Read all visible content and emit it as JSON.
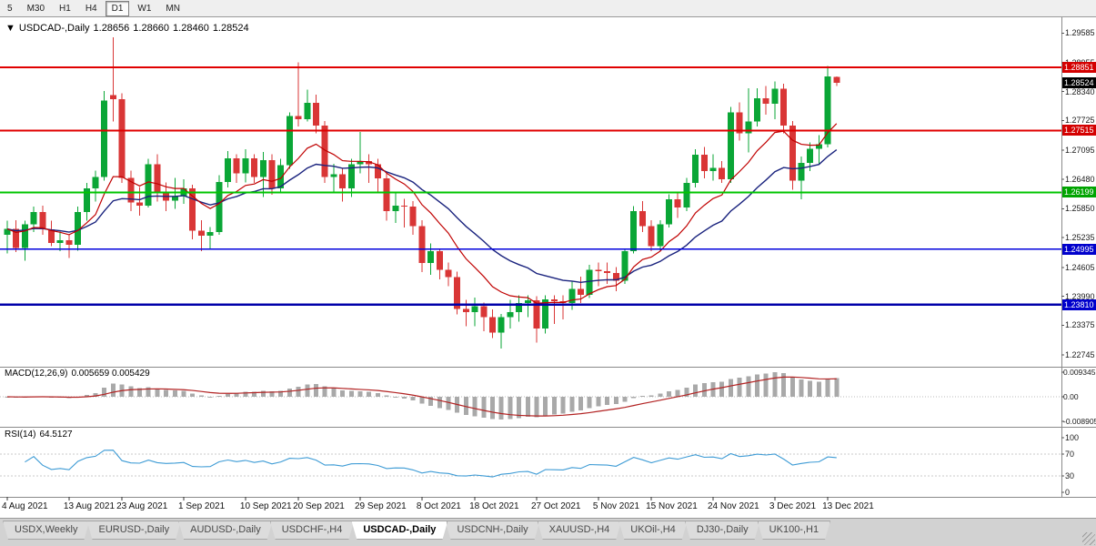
{
  "toolbar": {
    "timeframes": [
      {
        "label": "5",
        "active": false
      },
      {
        "label": "M30",
        "active": false
      },
      {
        "label": "H1",
        "active": false
      },
      {
        "label": "H4",
        "active": false
      },
      {
        "label": "D1",
        "active": true
      },
      {
        "label": "W1",
        "active": false
      },
      {
        "label": "MN",
        "active": false
      }
    ]
  },
  "chart": {
    "symbol_title": "USDCAD-,Daily",
    "ohlc_text": {
      "open": "1.28656",
      "high": "1.28660",
      "low": "1.28460",
      "close": "1.28524"
    },
    "price_axis_labels": [
      "1.29585",
      "1.28955",
      "1.28340",
      "1.27725",
      "1.27095",
      "1.26480",
      "1.25850",
      "1.25235",
      "1.24605",
      "1.23990",
      "1.23375",
      "1.22745"
    ],
    "hlines": [
      {
        "price": 1.28851,
        "label": "1.28851",
        "color": "#e00000",
        "badge": "#d40000",
        "width": 2
      },
      {
        "price": 1.27515,
        "label": "1.27515",
        "color": "#e00000",
        "badge": "#d40000",
        "width": 2
      },
      {
        "price": 1.26199,
        "label": "1.26199",
        "color": "#00c400",
        "badge": "#00a400",
        "width": 2
      },
      {
        "price": 1.24995,
        "label": "1.24995",
        "color": "#0000dd",
        "badge": "#0000cc",
        "width": 1.5
      },
      {
        "price": 1.2381,
        "label": "1.23810",
        "color": "#0000aa",
        "badge": "#0000cc",
        "width": 2.5
      }
    ],
    "current_price": {
      "price": 1.28524,
      "label": "1.28524",
      "badge": "#000000"
    },
    "colors": {
      "up": "#0aa636",
      "down": "#d93636",
      "ma_fast": "#c00000",
      "ma_slow": "#1a237e"
    }
  },
  "chart_data": {
    "type": "candlestick",
    "symbol": "USDCAD",
    "timeframe": "Daily",
    "title": "USDCAD-,Daily",
    "y_range": [
      1.2255,
      1.299
    ],
    "x_tick_labels": [
      "4 Aug 2021",
      "13 Aug 2021",
      "23 Aug 2021",
      "1 Sep 2021",
      "10 Sep 2021",
      "20 Sep 2021",
      "29 Sep 2021",
      "8 Oct 2021",
      "18 Oct 2021",
      "27 Oct 2021",
      "5 Nov 2021",
      "15 Nov 2021",
      "24 Nov 2021",
      "3 Dec 2021",
      "13 Dec 2021"
    ],
    "x_tick_indexes": [
      0,
      7,
      13,
      20,
      27,
      33,
      40,
      47,
      53,
      60,
      67,
      73,
      80,
      87,
      93
    ],
    "ohlc": [
      [
        1.253,
        1.256,
        1.249,
        1.2542
      ],
      [
        1.2542,
        1.2561,
        1.2493,
        1.2502
      ],
      [
        1.2502,
        1.256,
        1.2475,
        1.2552
      ],
      [
        1.2552,
        1.259,
        1.2535,
        1.2578
      ],
      [
        1.2578,
        1.2592,
        1.253,
        1.2541
      ],
      [
        1.2541,
        1.256,
        1.2505,
        1.2512
      ],
      [
        1.2512,
        1.2536,
        1.2495,
        1.2518
      ],
      [
        1.2518,
        1.2531,
        1.248,
        1.2508
      ],
      [
        1.2508,
        1.259,
        1.2496,
        1.2578
      ],
      [
        1.2578,
        1.264,
        1.256,
        1.2628
      ],
      [
        1.2628,
        1.2666,
        1.26,
        1.2652
      ],
      [
        1.2652,
        1.2835,
        1.2645,
        1.2815
      ],
      [
        1.2827,
        1.2949,
        1.277,
        1.2818
      ],
      [
        1.2818,
        1.283,
        1.264,
        1.2651
      ],
      [
        1.2651,
        1.2666,
        1.258,
        1.2598
      ],
      [
        1.2598,
        1.2631,
        1.257,
        1.2592
      ],
      [
        1.2592,
        1.2691,
        1.2588,
        1.268
      ],
      [
        1.268,
        1.2701,
        1.26,
        1.2621
      ],
      [
        1.2621,
        1.2641,
        1.258,
        1.2602
      ],
      [
        1.2602,
        1.2651,
        1.2585,
        1.2612
      ],
      [
        1.2612,
        1.2648,
        1.2595,
        1.2628
      ],
      [
        1.2628,
        1.2636,
        1.252,
        1.2538
      ],
      [
        1.2538,
        1.2561,
        1.2495,
        1.2528
      ],
      [
        1.2528,
        1.2546,
        1.25,
        1.2535
      ],
      [
        1.2535,
        1.2656,
        1.253,
        1.2642
      ],
      [
        1.2642,
        1.2708,
        1.263,
        1.2692
      ],
      [
        1.2692,
        1.2701,
        1.264,
        1.266
      ],
      [
        1.266,
        1.2711,
        1.2641,
        1.2692
      ],
      [
        1.2692,
        1.2701,
        1.264,
        1.2652
      ],
      [
        1.2652,
        1.2706,
        1.261,
        1.2688
      ],
      [
        1.2688,
        1.2701,
        1.2615,
        1.2628
      ],
      [
        1.2628,
        1.2691,
        1.262,
        1.2678
      ],
      [
        1.2678,
        1.279,
        1.267,
        1.2782
      ],
      [
        1.2782,
        1.2896,
        1.276,
        1.2775
      ],
      [
        1.2775,
        1.2838,
        1.277,
        1.281
      ],
      [
        1.281,
        1.2828,
        1.2745,
        1.2762
      ],
      [
        1.2762,
        1.2771,
        1.264,
        1.2652
      ],
      [
        1.2652,
        1.2681,
        1.262,
        1.2658
      ],
      [
        1.2658,
        1.2671,
        1.26,
        1.2628
      ],
      [
        1.2628,
        1.2691,
        1.261,
        1.268
      ],
      [
        1.268,
        1.2748,
        1.266,
        1.2686
      ],
      [
        1.2686,
        1.2701,
        1.264,
        1.268
      ],
      [
        1.268,
        1.2691,
        1.262,
        1.265
      ],
      [
        1.265,
        1.2661,
        1.256,
        1.258
      ],
      [
        1.258,
        1.2621,
        1.2555,
        1.2592
      ],
      [
        1.2592,
        1.2606,
        1.2545,
        1.259
      ],
      [
        1.259,
        1.2601,
        1.253,
        1.2548
      ],
      [
        1.2548,
        1.2561,
        1.245,
        1.247
      ],
      [
        1.247,
        1.2511,
        1.2445,
        1.2495
      ],
      [
        1.2495,
        1.2501,
        1.2435,
        1.2455
      ],
      [
        1.2455,
        1.2471,
        1.242,
        1.244
      ],
      [
        1.244,
        1.2451,
        1.236,
        1.2372
      ],
      [
        1.2372,
        1.2391,
        1.2335,
        1.2365
      ],
      [
        1.2365,
        1.2396,
        1.2335,
        1.2378
      ],
      [
        1.2378,
        1.2386,
        1.2325,
        1.2355
      ],
      [
        1.2355,
        1.2371,
        1.231,
        1.2322
      ],
      [
        1.2322,
        1.2361,
        1.2288,
        1.2355
      ],
      [
        1.2355,
        1.2391,
        1.233,
        1.2365
      ],
      [
        1.2365,
        1.2401,
        1.2345,
        1.2385
      ],
      [
        1.2385,
        1.2401,
        1.2355,
        1.239
      ],
      [
        1.239,
        1.2399,
        1.23,
        1.233
      ],
      [
        1.233,
        1.2401,
        1.232,
        1.2392
      ],
      [
        1.2392,
        1.2401,
        1.234,
        1.2388
      ],
      [
        1.2388,
        1.2401,
        1.235,
        1.2385
      ],
      [
        1.2385,
        1.2431,
        1.237,
        1.2415
      ],
      [
        1.2415,
        1.2441,
        1.2385,
        1.2402
      ],
      [
        1.2402,
        1.2466,
        1.2395,
        1.2455
      ],
      [
        1.2455,
        1.2471,
        1.242,
        1.2452
      ],
      [
        1.2452,
        1.2471,
        1.2425,
        1.2448
      ],
      [
        1.2448,
        1.2461,
        1.241,
        1.2432
      ],
      [
        1.2432,
        1.2501,
        1.2425,
        1.2495
      ],
      [
        1.2495,
        1.2591,
        1.249,
        1.258
      ],
      [
        1.258,
        1.2601,
        1.2535,
        1.2548
      ],
      [
        1.2548,
        1.2561,
        1.2495,
        1.2505
      ],
      [
        1.2505,
        1.2561,
        1.2495,
        1.2552
      ],
      [
        1.2552,
        1.2616,
        1.2545,
        1.2605
      ],
      [
        1.2605,
        1.2621,
        1.2565,
        1.2588
      ],
      [
        1.2588,
        1.2651,
        1.258,
        1.264
      ],
      [
        1.264,
        1.2711,
        1.263,
        1.27
      ],
      [
        1.27,
        1.2716,
        1.265,
        1.2665
      ],
      [
        1.2665,
        1.2701,
        1.2645,
        1.2672
      ],
      [
        1.2672,
        1.2686,
        1.264,
        1.2648
      ],
      [
        1.2648,
        1.2801,
        1.264,
        1.279
      ],
      [
        1.279,
        1.2811,
        1.273,
        1.2745
      ],
      [
        1.2745,
        1.2841,
        1.2705,
        1.277
      ],
      [
        1.277,
        1.2841,
        1.276,
        1.282
      ],
      [
        1.282,
        1.2846,
        1.2785,
        1.2808
      ],
      [
        1.2808,
        1.2856,
        1.2775,
        1.284
      ],
      [
        1.284,
        1.2851,
        1.2745,
        1.2762
      ],
      [
        1.2762,
        1.2771,
        1.2625,
        1.2645
      ],
      [
        1.2645,
        1.2696,
        1.2605,
        1.2682
      ],
      [
        1.2682,
        1.2726,
        1.2665,
        1.2712
      ],
      [
        1.2712,
        1.2741,
        1.268,
        1.2722
      ],
      [
        1.2722,
        1.2888,
        1.2715,
        1.2866
      ],
      [
        1.28656,
        1.2866,
        1.2846,
        1.28524
      ]
    ]
  },
  "macd": {
    "label": "MACD(12,26,9)",
    "value_text": "0.005659 0.005429",
    "axis_labels": [
      "0.009345",
      "0.00",
      "-0.008905"
    ],
    "fast": 12,
    "slow": 26,
    "signal": 9,
    "histogram_color": "#a9a9a9",
    "signal_color": "#b22222"
  },
  "rsi": {
    "label": "RSI(14)",
    "value_text": "64.5127",
    "axis_labels": [
      "100",
      "70",
      "30",
      "0"
    ],
    "period": 14,
    "levels": [
      70,
      30
    ],
    "line_color": "#3d9bd5"
  },
  "tabs": {
    "items": [
      {
        "label": "USDX,Weekly",
        "active": false
      },
      {
        "label": "EURUSD-,Daily",
        "active": false
      },
      {
        "label": "AUDUSD-,Daily",
        "active": false
      },
      {
        "label": "USDCHF-,H4",
        "active": false
      },
      {
        "label": "USDCAD-,Daily",
        "active": true
      },
      {
        "label": "USDCNH-,Daily",
        "active": false
      },
      {
        "label": "XAUUSD-,H4",
        "active": false
      },
      {
        "label": "UKOil-,H4",
        "active": false
      },
      {
        "label": "DJ30-,Daily",
        "active": false
      },
      {
        "label": "UK100-,H1",
        "active": false
      }
    ]
  }
}
